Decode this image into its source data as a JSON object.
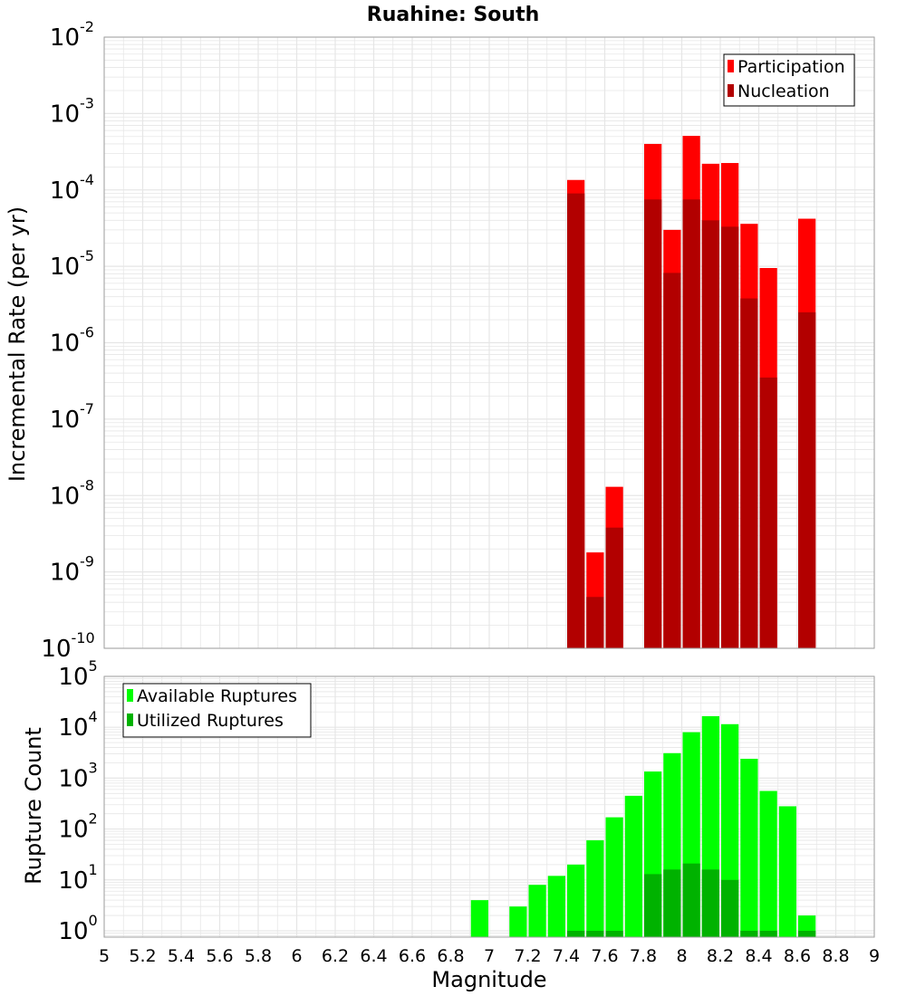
{
  "colors": {
    "participation": "#ff0000",
    "nucleation": "#b20000",
    "available": "#00ff00",
    "utilized": "#00b200",
    "grid": "#e6e6e6",
    "plot_border": "#a0a0a0"
  },
  "chart_data": [
    {
      "type": "bar",
      "title": "Ruahine: South",
      "xlabel": "",
      "ylabel": "Incremental Rate (per yr)",
      "y_scale": "log",
      "ylim": [
        1e-10,
        0.01
      ],
      "xlim": [
        5.0,
        9.0
      ],
      "bar_width": 0.1,
      "grid": true,
      "legend_position": "top-right",
      "y_ticks": [
        {
          "base": "10",
          "exp": "-2",
          "value": 0.01
        },
        {
          "base": "10",
          "exp": "-3",
          "value": 0.001
        },
        {
          "base": "10",
          "exp": "-4",
          "value": 0.0001
        },
        {
          "base": "10",
          "exp": "-5",
          "value": 1e-05
        },
        {
          "base": "10",
          "exp": "-6",
          "value": 1e-06
        },
        {
          "base": "10",
          "exp": "-7",
          "value": 1e-07
        },
        {
          "base": "10",
          "exp": "-8",
          "value": 1e-08
        },
        {
          "base": "10",
          "exp": "-9",
          "value": 1e-09
        },
        {
          "base": "10",
          "exp": "-10",
          "value": 1e-10
        }
      ],
      "series": [
        {
          "name": "Participation",
          "color": "#ff0000",
          "points": [
            {
              "x": 7.45,
              "y": 0.000135
            },
            {
              "x": 7.55,
              "y": 1.8e-09
            },
            {
              "x": 7.65,
              "y": 1.3e-08
            },
            {
              "x": 7.85,
              "y": 0.0004
            },
            {
              "x": 7.95,
              "y": 3e-05
            },
            {
              "x": 8.05,
              "y": 0.00051
            },
            {
              "x": 8.15,
              "y": 0.00022
            },
            {
              "x": 8.25,
              "y": 0.000225
            },
            {
              "x": 8.35,
              "y": 3.6e-05
            },
            {
              "x": 8.45,
              "y": 9.5e-06
            },
            {
              "x": 8.65,
              "y": 4.2e-05
            }
          ]
        },
        {
          "name": "Nucleation",
          "color": "#b20000",
          "points": [
            {
              "x": 7.45,
              "y": 9e-05
            },
            {
              "x": 7.55,
              "y": 4.7e-10
            },
            {
              "x": 7.65,
              "y": 3.8e-09
            },
            {
              "x": 7.85,
              "y": 7.5e-05
            },
            {
              "x": 7.95,
              "y": 8.2e-06
            },
            {
              "x": 8.05,
              "y": 7.5e-05
            },
            {
              "x": 8.15,
              "y": 4e-05
            },
            {
              "x": 8.25,
              "y": 3.3e-05
            },
            {
              "x": 8.35,
              "y": 3.8e-06
            },
            {
              "x": 8.45,
              "y": 3.5e-07
            },
            {
              "x": 8.65,
              "y": 2.5e-06
            }
          ]
        }
      ]
    },
    {
      "type": "bar",
      "title": "",
      "xlabel": "Magnitude",
      "ylabel": "Rupture Count",
      "y_scale": "log",
      "ylim": [
        0.75,
        100000.0
      ],
      "xlim": [
        5.0,
        9.0
      ],
      "bar_width": 0.1,
      "grid": true,
      "legend_position": "top-left",
      "x_ticks": [
        "5",
        "5.2",
        "5.4",
        "5.6",
        "5.8",
        "6",
        "6.2",
        "6.4",
        "6.6",
        "6.8",
        "7",
        "7.2",
        "7.4",
        "7.6",
        "7.8",
        "8",
        "8.2",
        "8.4",
        "8.6",
        "8.8",
        "9"
      ],
      "y_ticks": [
        {
          "base": "10",
          "exp": "5",
          "value": 100000.0
        },
        {
          "base": "10",
          "exp": "4",
          "value": 10000.0
        },
        {
          "base": "10",
          "exp": "3",
          "value": 1000.0
        },
        {
          "base": "10",
          "exp": "2",
          "value": 100.0
        },
        {
          "base": "10",
          "exp": "1",
          "value": 10.0
        },
        {
          "base": "10",
          "exp": "0",
          "value": 1
        }
      ],
      "series": [
        {
          "name": "Available Ruptures",
          "color": "#00ff00",
          "points": [
            {
              "x": 6.95,
              "y": 4
            },
            {
              "x": 7.15,
              "y": 3
            },
            {
              "x": 7.25,
              "y": 8
            },
            {
              "x": 7.35,
              "y": 12
            },
            {
              "x": 7.45,
              "y": 20
            },
            {
              "x": 7.55,
              "y": 60
            },
            {
              "x": 7.65,
              "y": 170
            },
            {
              "x": 7.75,
              "y": 450
            },
            {
              "x": 7.85,
              "y": 1350
            },
            {
              "x": 7.95,
              "y": 3100
            },
            {
              "x": 8.05,
              "y": 8000
            },
            {
              "x": 8.15,
              "y": 16500
            },
            {
              "x": 8.25,
              "y": 11500
            },
            {
              "x": 8.35,
              "y": 2400
            },
            {
              "x": 8.45,
              "y": 560
            },
            {
              "x": 8.55,
              "y": 280
            },
            {
              "x": 8.65,
              "y": 2
            }
          ]
        },
        {
          "name": "Utilized Ruptures",
          "color": "#00b200",
          "points": [
            {
              "x": 7.45,
              "y": 1
            },
            {
              "x": 7.55,
              "y": 1
            },
            {
              "x": 7.65,
              "y": 1
            },
            {
              "x": 7.85,
              "y": 13
            },
            {
              "x": 7.95,
              "y": 16
            },
            {
              "x": 8.05,
              "y": 21
            },
            {
              "x": 8.15,
              "y": 16
            },
            {
              "x": 8.25,
              "y": 10
            },
            {
              "x": 8.35,
              "y": 1
            },
            {
              "x": 8.45,
              "y": 1
            },
            {
              "x": 8.65,
              "y": 1
            }
          ]
        }
      ]
    }
  ]
}
